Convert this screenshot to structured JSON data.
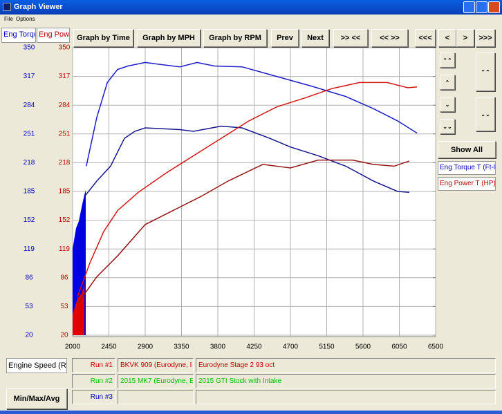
{
  "window": {
    "title": "Graph Viewer",
    "menu": [
      "File",
      "Options"
    ]
  },
  "tabs": [
    "Eng Torqu",
    "Eng Powe"
  ],
  "toolbar": [
    "Graph by Time",
    "Graph by MPH",
    "Graph by RPM",
    "Prev",
    "Next",
    ">> <<",
    "<< >>",
    "<<<",
    "<",
    ">",
    ">>>"
  ],
  "side_panel": {
    "show_all": "Show All",
    "legend": [
      "Eng Torque T (Ft-l",
      "Eng Power T (HP)"
    ]
  },
  "bottom": {
    "x_channel": "Engine Speed (RPI",
    "runs": [
      {
        "label": "Run #1",
        "name": "BKVK 909 (Eurodyne, I",
        "note": "Eurodyne Stage 2 93 oct"
      },
      {
        "label": "Run #2",
        "name": "2015 MK7 (Eurodyne, E",
        "note": "2015 GTI Stock with Intake"
      },
      {
        "label": "Run #3"
      }
    ],
    "min_max": "Min/Max/Avg"
  },
  "chart_data": {
    "type": "line",
    "xlim": [
      2000,
      6500
    ],
    "xticks": [
      2000,
      2450,
      2900,
      3350,
      3800,
      4250,
      4700,
      5150,
      5600,
      6050,
      6500
    ],
    "ylim": [
      20,
      350
    ],
    "yticks": [
      20,
      53,
      86,
      119,
      152,
      185,
      218,
      251,
      284,
      317,
      350
    ],
    "y2lim": [
      20,
      350
    ],
    "y2ticks": [
      20,
      53,
      86,
      119,
      152,
      185,
      218,
      251,
      284,
      317,
      350
    ],
    "grid": true,
    "series": [
      {
        "color": "#1c1cc8",
        "axis": "y",
        "x": [
          2170,
          2300,
          2430,
          2557,
          2686,
          2900,
          3071,
          3329,
          3543,
          3757,
          4100,
          4529,
          4957,
          5386,
          5729,
          6029,
          6269
        ],
        "values": [
          214,
          270,
          310,
          325,
          329,
          333,
          331,
          328,
          333,
          329,
          328,
          317,
          306,
          294,
          280,
          266,
          252
        ]
      },
      {
        "color": "#141490",
        "axis": "y",
        "x": [
          2146,
          2300,
          2471,
          2643,
          2771,
          2900,
          3329,
          3500,
          3843,
          4100,
          4443,
          4700,
          5043,
          5386,
          5729,
          6029,
          6174
        ],
        "values": [
          179,
          197,
          214,
          246,
          254,
          258,
          256,
          254,
          260,
          258,
          246,
          236,
          226,
          214,
          197,
          185,
          184
        ]
      },
      {
        "color": "#d41414",
        "axis": "y2",
        "x": [
          2060,
          2214,
          2386,
          2557,
          2814,
          3157,
          3500,
          3843,
          4186,
          4529,
          4871,
          5214,
          5557,
          5900,
          6157,
          6269
        ],
        "values": [
          64,
          103,
          139,
          163,
          184,
          206,
          226,
          246,
          266,
          282,
          292,
          303,
          310,
          310,
          304,
          305
        ]
      },
      {
        "color": "#941414",
        "axis": "y2",
        "x": [
          2060,
          2300,
          2557,
          2900,
          3243,
          3586,
          3929,
          4357,
          4700,
          5043,
          5471,
          5729,
          5986,
          6174
        ],
        "values": [
          56,
          87,
          111,
          147,
          163,
          179,
          197,
          216,
          212,
          221,
          221,
          216,
          214,
          220
        ]
      }
    ]
  }
}
